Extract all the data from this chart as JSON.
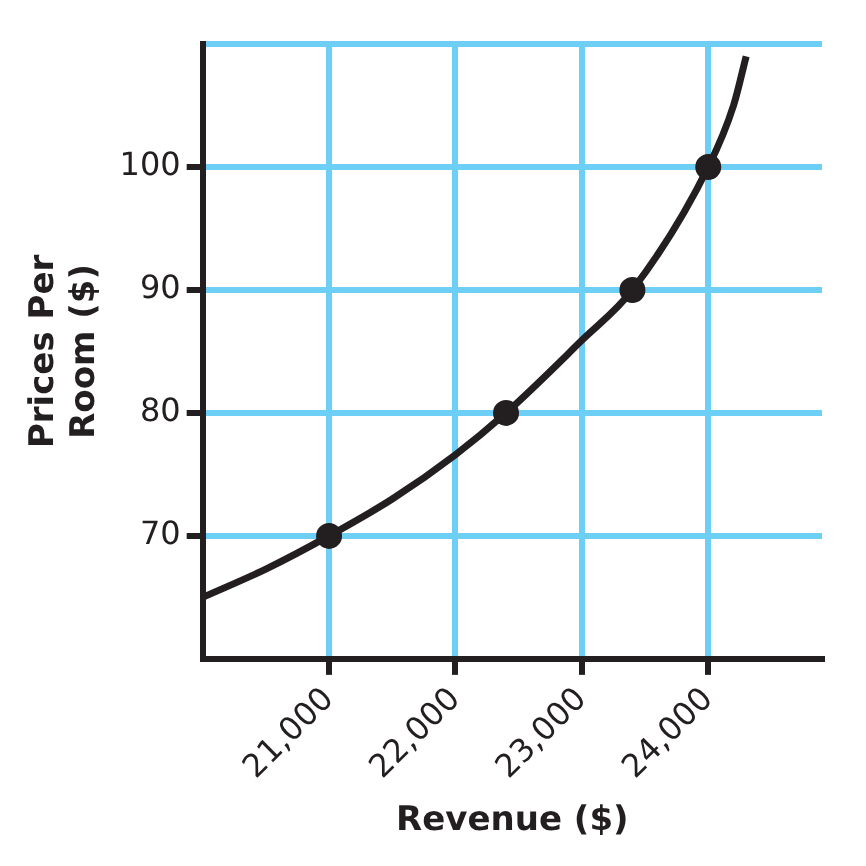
{
  "chart_data": {
    "type": "line",
    "xlabel": "Revenue ($)",
    "ylabel": "Prices Per Room ($)",
    "xlim": [
      20000,
      24900
    ],
    "ylim": [
      60,
      110
    ],
    "xticks": [
      {
        "value": 21000,
        "label": "21,000"
      },
      {
        "value": 22000,
        "label": "22,000"
      },
      {
        "value": 23000,
        "label": "23,000"
      },
      {
        "value": 24000,
        "label": "24,000"
      }
    ],
    "yticks": [
      70,
      80,
      90,
      100,
      {
        "value": 110,
        "label": null
      }
    ],
    "grid": true,
    "legend": false,
    "series": [
      {
        "color": "#231f20",
        "marker": "none",
        "x": [
          20000,
          20500,
          21000,
          21500,
          22000,
          22400,
          23000,
          23400,
          24000,
          24200,
          24300
        ],
        "values": [
          65,
          67.3,
          70,
          73,
          76.6,
          80,
          85.9,
          90,
          100,
          105,
          109
        ]
      },
      {
        "type": "scatter",
        "color": "#231f20",
        "marker": "circle",
        "x": [
          21000,
          22400,
          23400,
          24000
        ],
        "values": [
          70,
          80,
          90,
          100
        ]
      }
    ]
  }
}
